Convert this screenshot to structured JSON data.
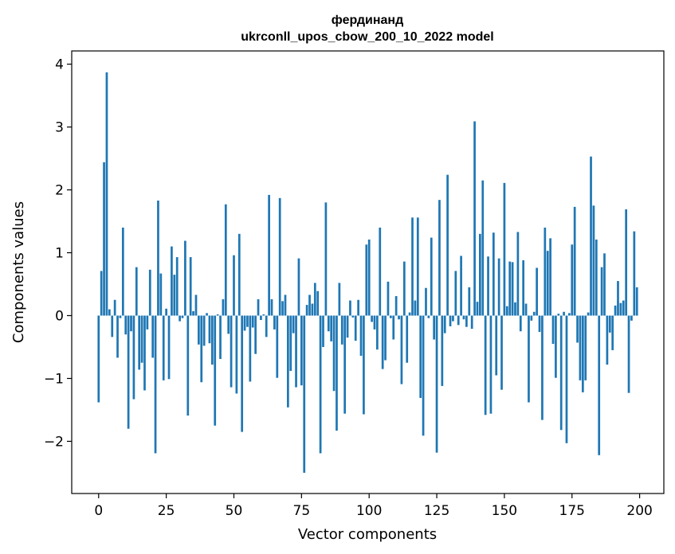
{
  "chart_data": {
    "type": "bar",
    "title": "фердинанд",
    "subtitle": "ukrconll_upos_cbow_200_10_2022 model",
    "xlabel": "Vector components",
    "ylabel": "Components values",
    "xlim": [
      -9.95,
      208.95
    ],
    "ylim": [
      -2.83,
      4.21
    ],
    "xticks": [
      0,
      25,
      50,
      75,
      100,
      125,
      150,
      175,
      200
    ],
    "yticks": [
      -2,
      -1,
      0,
      1,
      2,
      3,
      4
    ],
    "grid": false,
    "legend": "none",
    "bar_color": "#1f77b4",
    "values": [
      -1.38,
      0.71,
      2.44,
      3.87,
      0.1,
      -0.34,
      0.25,
      -0.67,
      -0.04,
      1.4,
      -0.3,
      -1.8,
      -0.25,
      -1.33,
      0.77,
      -0.86,
      -0.75,
      -1.19,
      -0.22,
      0.73,
      -0.67,
      -2.19,
      1.83,
      0.67,
      -1.03,
      0.11,
      -1.01,
      1.1,
      0.65,
      0.93,
      -0.09,
      -0.04,
      1.19,
      -1.59,
      0.93,
      0.07,
      0.33,
      -0.46,
      -1.06,
      -0.48,
      0.04,
      -0.44,
      -0.78,
      -1.75,
      0.02,
      -0.69,
      0.26,
      1.77,
      -0.29,
      -1.14,
      0.96,
      -1.24,
      1.3,
      -1.85,
      -0.24,
      -0.18,
      -1.05,
      -0.19,
      -0.61,
      0.26,
      -0.07,
      0.02,
      -0.34,
      1.92,
      0.26,
      -0.22,
      -0.99,
      1.87,
      0.23,
      0.33,
      -1.46,
      -0.88,
      -0.28,
      -1.14,
      0.91,
      -1.11,
      -2.5,
      0.17,
      0.33,
      0.19,
      0.52,
      0.39,
      -2.19,
      -0.5,
      1.8,
      -0.25,
      -0.41,
      -1.2,
      -1.83,
      0.52,
      -0.46,
      -1.56,
      -0.35,
      0.24,
      -0.03,
      -0.4,
      0.25,
      -0.64,
      -1.57,
      1.13,
      1.21,
      -0.1,
      -0.22,
      -0.54,
      1.4,
      -0.85,
      -0.71,
      0.54,
      -0.04,
      -0.38,
      0.31,
      -0.06,
      -1.09,
      0.86,
      -0.75,
      0.05,
      1.56,
      0.24,
      1.56,
      -1.31,
      -1.91,
      0.44,
      -0.04,
      1.24,
      -0.38,
      -2.18,
      1.84,
      -1.12,
      -0.28,
      2.24,
      -0.17,
      -0.09,
      0.71,
      -0.15,
      0.95,
      -0.06,
      -0.18,
      0.45,
      -0.21,
      3.09,
      0.22,
      1.3,
      2.15,
      -1.58,
      0.94,
      -1.56,
      1.32,
      -0.95,
      0.91,
      -1.18,
      2.11,
      0.15,
      0.86,
      0.85,
      0.21,
      1.33,
      -0.25,
      0.88,
      0.19,
      -1.38,
      -0.08,
      0.06,
      0.76,
      -0.26,
      -1.66,
      1.4,
      1.03,
      1.23,
      -0.45,
      -0.99,
      0.03,
      -1.82,
      0.06,
      -2.03,
      0.04,
      1.13,
      1.73,
      -0.43,
      -1.03,
      -1.22,
      -1.03,
      0.05,
      2.53,
      1.75,
      1.21,
      -2.22,
      0.77,
      0.99,
      -0.78,
      -0.27,
      -0.55,
      0.16,
      0.55,
      0.2,
      0.24,
      1.69,
      -1.23,
      -0.08,
      1.34,
      0.45
    ]
  }
}
